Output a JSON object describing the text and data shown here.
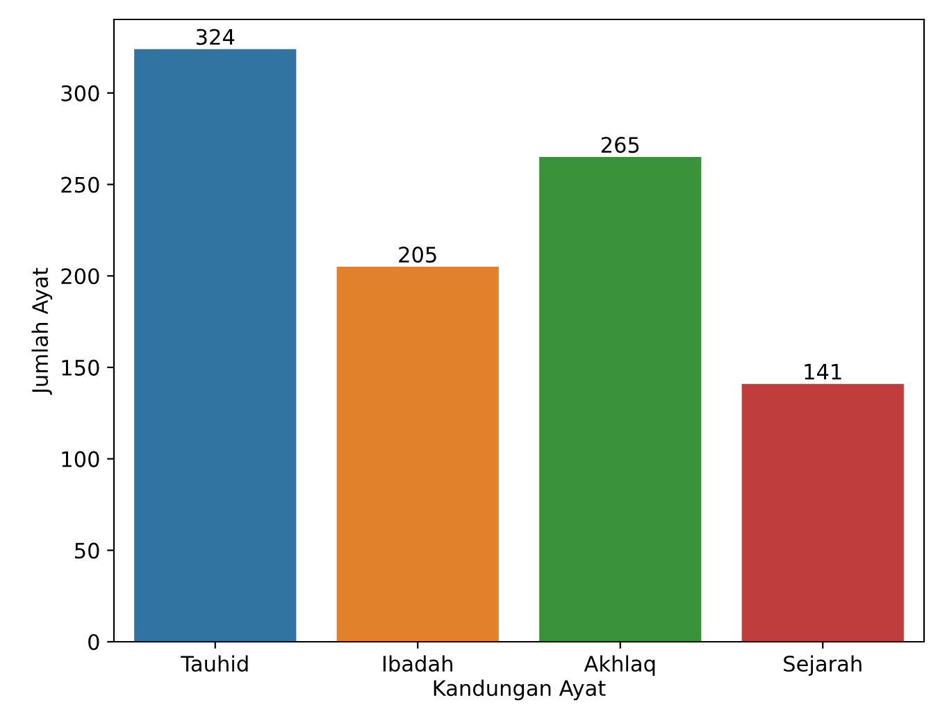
{
  "chart_data": {
    "type": "bar",
    "xlabel": "Kandungan Ayat",
    "ylabel": "Jumlah Ayat",
    "categories": [
      "Tauhid",
      "Ibadah",
      "Akhlaq",
      "Sejarah"
    ],
    "values": [
      324,
      205,
      265,
      141
    ],
    "colors": [
      "#3274a1",
      "#e1812c",
      "#3a923a",
      "#c03d3e"
    ],
    "ylim": [
      0,
      340.2
    ],
    "yticks": [
      0,
      50,
      100,
      150,
      200,
      250,
      300
    ],
    "data_labels": true,
    "grid": false
  }
}
